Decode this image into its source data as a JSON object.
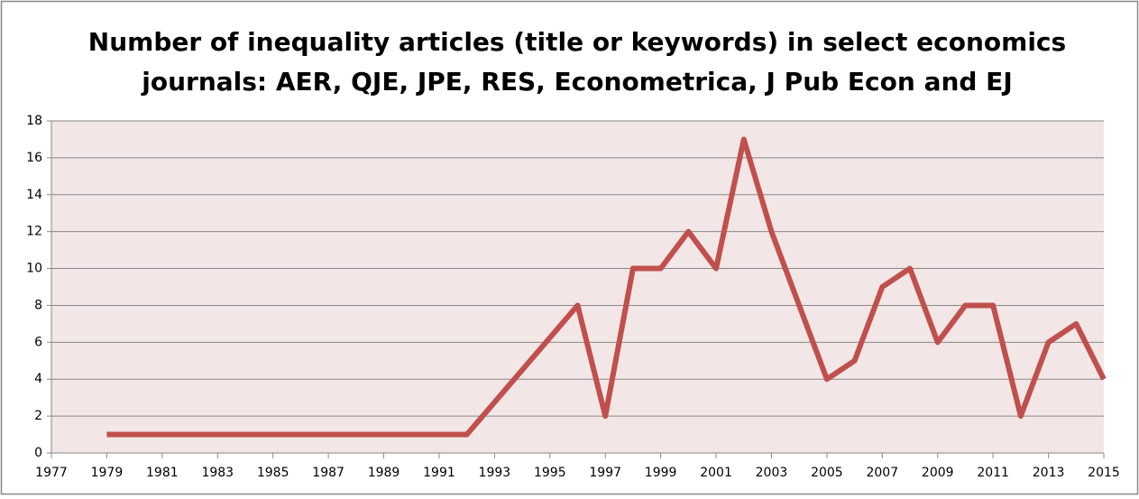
{
  "chart_data": {
    "type": "line",
    "title": [
      "Number of inequality articles (title or keywords)  in select economics",
      "journals: AER, QJE, JPE, RES, Econometrica, J Pub Econ and EJ"
    ],
    "x": [
      1979,
      1980,
      1981,
      1982,
      1983,
      1984,
      1985,
      1986,
      1987,
      1988,
      1989,
      1990,
      1991,
      1992,
      1996,
      1997,
      1998,
      1999,
      2000,
      2001,
      2002,
      2003,
      2004,
      2005,
      2006,
      2007,
      2008,
      2009,
      2010,
      2011,
      2012,
      2013,
      2014,
      2015
    ],
    "series": [
      {
        "name": "Inequality articles",
        "color": "#c0504d",
        "values": [
          1,
          1,
          1,
          1,
          1,
          1,
          1,
          1,
          1,
          1,
          1,
          1,
          1,
          1,
          8,
          2,
          10,
          10,
          12,
          10,
          17,
          12,
          8,
          4,
          5,
          9,
          10,
          6,
          8,
          8,
          2,
          6,
          7,
          4
        ]
      }
    ],
    "xlim": [
      1977,
      2015
    ],
    "xticks": [
      1977,
      1979,
      1981,
      1983,
      1985,
      1987,
      1989,
      1991,
      1993,
      1995,
      1997,
      1999,
      2001,
      2003,
      2005,
      2007,
      2009,
      2011,
      2013,
      2015
    ],
    "ylim": [
      0,
      18
    ],
    "yticks": [
      0,
      2,
      4,
      6,
      8,
      10,
      12,
      14,
      16,
      18
    ],
    "grid": true,
    "plot_background": "#f2e6e6"
  }
}
